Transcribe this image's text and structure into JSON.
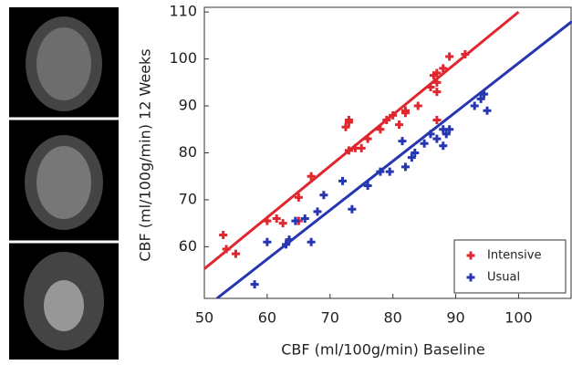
{
  "chart_data": {
    "type": "scatter",
    "x_label": "CBF (ml/100g/min) Baseline",
    "y_label": "CBF (ml/100g/min) 12 Weeks",
    "xlim": [
      50,
      108.5
    ],
    "ylim": [
      49,
      111
    ],
    "xticks": [
      50,
      60,
      70,
      80,
      90,
      100
    ],
    "yticks": [
      60,
      70,
      80,
      90,
      100,
      110
    ],
    "legend": "lower right",
    "series": [
      {
        "name": "Intensive",
        "color": "#e0262e",
        "x": [
          53,
          53.5,
          55,
          60,
          61.5,
          62.5,
          65,
          65,
          67,
          72.5,
          73,
          73,
          73,
          74,
          75,
          76,
          78,
          79,
          80,
          81,
          82,
          82,
          84,
          86,
          86.5,
          87,
          87,
          87,
          88,
          89,
          91.5,
          87
        ],
        "y": [
          62.5,
          59.5,
          58.5,
          65.5,
          66,
          65,
          70.5,
          65.5,
          75,
          85.5,
          87,
          86.5,
          80.5,
          81,
          81,
          83,
          85,
          87,
          88,
          86,
          88.5,
          89,
          90,
          94,
          96.5,
          97,
          93,
          87,
          98,
          100.5,
          101,
          95
        ],
        "fit": {
          "x": [
            50,
            100
          ],
          "y": [
            55.3,
            110
          ]
        }
      },
      {
        "name": "Usual",
        "color": "#2636b0",
        "x": [
          58,
          60,
          63,
          63.5,
          64.5,
          66,
          67,
          68,
          69,
          72,
          73.5,
          76,
          78,
          79.5,
          81.5,
          82,
          83,
          83.5,
          85,
          86,
          87,
          88,
          88,
          89,
          93,
          94,
          94.5,
          95,
          88.5
        ],
        "y": [
          52,
          61,
          60.5,
          61.5,
          65.5,
          66,
          61,
          67.5,
          71,
          74,
          68,
          73,
          76,
          76,
          82.5,
          77,
          79,
          80,
          82,
          84,
          83,
          81.5,
          85,
          85,
          90,
          91.5,
          92.5,
          89,
          84
        ],
        "fit": {
          "x": [
            52,
            108.5
          ],
          "y": [
            49,
            108
          ]
        }
      }
    ]
  }
}
